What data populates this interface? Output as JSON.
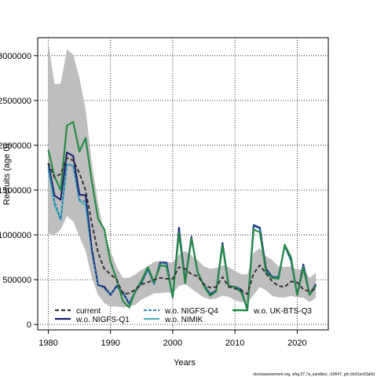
{
  "chart_data": {
    "type": "line",
    "xlabel": "Years",
    "ylabel": "Recruits (age 0)",
    "xlim": [
      1978.3,
      2025
    ],
    "ylim": [
      -60000,
      3200000
    ],
    "x_ticks": [
      1980,
      1990,
      2000,
      2010,
      2020
    ],
    "y_ticks": [
      0,
      500000,
      1000000,
      1500000,
      2000000,
      2500000,
      3000000
    ],
    "y_tick_labels": [
      "0",
      "500000",
      "1000000",
      "1500000",
      "2000000",
      "2500000",
      "3000000"
    ],
    "grid": true,
    "legend_placement": "bottom",
    "colors": {
      "band": "#bebebe",
      "current": "#333333",
      "nigfs_q1": "#1a1a6e",
      "nigfs_q4": "#1f77b4",
      "nimik": "#4eb0b8",
      "uk_bts_q3": "#238b45"
    },
    "x": [
      1980,
      1981,
      1982,
      1983,
      1984,
      1985,
      1986,
      1987,
      1988,
      1989,
      1990,
      1991,
      1992,
      1993,
      1994,
      1995,
      1996,
      1997,
      1998,
      1999,
      2000,
      2001,
      2002,
      2003,
      2004,
      2005,
      2006,
      2007,
      2008,
      2009,
      2010,
      2011,
      2012,
      2013,
      2014,
      2015,
      2016,
      2017,
      2018,
      2019,
      2020,
      2021,
      2022,
      2023
    ],
    "band": {
      "name": "",
      "upper": [
        3150000,
        2680000,
        2690000,
        3070000,
        3010000,
        2750000,
        2400000,
        1800000,
        1350000,
        1000000,
        820000,
        640000,
        520000,
        520000,
        560000,
        610000,
        650000,
        700000,
        710000,
        700000,
        690000,
        780000,
        820000,
        770000,
        720000,
        650000,
        620000,
        630000,
        660000,
        640000,
        600000,
        560000,
        560000,
        800000,
        850000,
        760000,
        720000,
        650000,
        640000,
        650000,
        610000,
        620000,
        520000,
        580000
      ],
      "lower": [
        1020000,
        1000000,
        1060000,
        1210000,
        1150000,
        980000,
        820000,
        520000,
        330000,
        240000,
        200000,
        200000,
        190000,
        200000,
        220000,
        280000,
        310000,
        350000,
        350000,
        360000,
        350000,
        430000,
        450000,
        400000,
        350000,
        300000,
        280000,
        290000,
        320000,
        310000,
        270000,
        250000,
        240000,
        330000,
        420000,
        380000,
        320000,
        300000,
        300000,
        320000,
        300000,
        300000,
        250000,
        300000
      ]
    },
    "series": [
      {
        "name": "current",
        "style": "dashed",
        "values": [
          1800000,
          1640000,
          1680000,
          1860000,
          1830000,
          1690000,
          1500000,
          1130000,
          800000,
          620000,
          560000,
          500000,
          340000,
          350000,
          390000,
          450000,
          470000,
          500000,
          520000,
          510000,
          510000,
          640000,
          620000,
          560000,
          540000,
          450000,
          410000,
          420000,
          530000,
          420000,
          400000,
          380000,
          340000,
          570000,
          660000,
          570000,
          480000,
          430000,
          420000,
          480000,
          470000,
          390000,
          370000,
          400000
        ]
      },
      {
        "name": "w.o. NIGFS-Q1",
        "style": "solid",
        "values": [
          1800000,
          1440000,
          1390000,
          1920000,
          1880000,
          1450000,
          1440000,
          840000,
          440000,
          420000,
          330000,
          430000,
          360000,
          230000,
          370000,
          470000,
          620000,
          460000,
          690000,
          690000,
          300000,
          1080000,
          480000,
          980000,
          580000,
          440000,
          340000,
          380000,
          910000,
          430000,
          420000,
          390000,
          160000,
          1110000,
          1080000,
          620000,
          530000,
          530000,
          880000,
          720000,
          330000,
          670000,
          330000,
          450000
        ]
      },
      {
        "name": "w.o. NIGFS-Q4",
        "style": "dashed",
        "values": [
          1770000,
          1380000,
          1170000,
          1790000,
          1770000,
          1390000,
          1370000,
          800000,
          450000,
          400000,
          330000,
          420000,
          360000,
          230000,
          370000,
          460000,
          610000,
          450000,
          690000,
          680000,
          300000,
          1050000,
          470000,
          970000,
          580000,
          440000,
          340000,
          380000,
          900000,
          430000,
          420000,
          390000,
          160000,
          1100000,
          1070000,
          610000,
          530000,
          530000,
          880000,
          720000,
          330000,
          660000,
          330000,
          440000
        ]
      },
      {
        "name": "w.o. NIMIK",
        "style": "solid",
        "values": [
          1740000,
          1330000,
          1170000,
          1790000,
          1770000,
          1380000,
          1330000,
          820000,
          440000,
          420000,
          340000,
          420000,
          350000,
          230000,
          380000,
          470000,
          620000,
          450000,
          690000,
          680000,
          300000,
          1050000,
          470000,
          970000,
          580000,
          440000,
          340000,
          380000,
          900000,
          430000,
          420000,
          390000,
          160000,
          1100000,
          1070000,
          610000,
          530000,
          530000,
          880000,
          710000,
          330000,
          660000,
          330000,
          440000
        ]
      },
      {
        "name": "w.o. UK-BTS-Q3",
        "style": "solid",
        "values": [
          1950000,
          1650000,
          1500000,
          2220000,
          2260000,
          1930000,
          2080000,
          1600000,
          1180000,
          1060000,
          700000,
          500000,
          260000,
          190000,
          380000,
          490000,
          640000,
          470000,
          660000,
          650000,
          310000,
          1020000,
          460000,
          960000,
          590000,
          430000,
          320000,
          370000,
          880000,
          420000,
          420000,
          360000,
          180000,
          1060000,
          1030000,
          580000,
          520000,
          510000,
          890000,
          750000,
          330000,
          630000,
          330000,
          430000
        ]
      }
    ],
    "legend": [
      {
        "label": "current",
        "series": "current"
      },
      {
        "label": "w.o. NIGFS-Q1",
        "series": "nigfs_q1"
      },
      {
        "label": "w.o. NIGFS-Q4",
        "series": "nigfs_q4"
      },
      {
        "label": "w.o. NIMIK",
        "series": "nimik"
      },
      {
        "label": "w.o. UK-BTS-Q3",
        "series": "uk_bts_q3"
      }
    ]
  },
  "footer": "stockassessment.org, whg.27.7a_sandbox, r18647, git:c9c61ec53a0d"
}
